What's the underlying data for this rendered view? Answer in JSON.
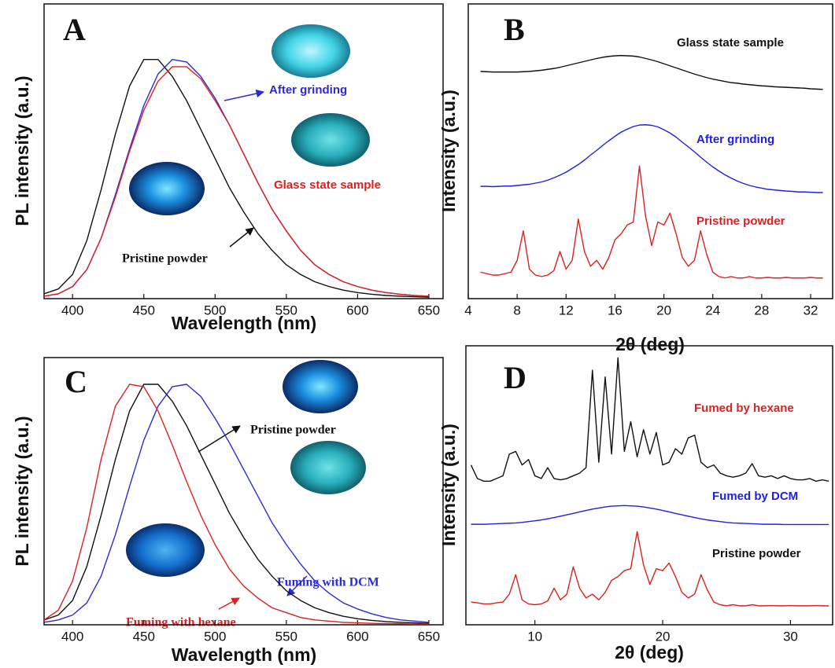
{
  "chart_data": [
    {
      "type": "line",
      "panel_label": "A",
      "x_label": "Wavelength (nm)",
      "y_label": "PL intensity (a.u.)",
      "x": [
        380,
        390,
        400,
        410,
        420,
        430,
        440,
        450,
        460,
        470,
        480,
        490,
        500,
        510,
        520,
        530,
        540,
        550,
        560,
        570,
        580,
        590,
        600,
        610,
        620,
        630,
        640,
        650
      ],
      "xlim": [
        380,
        660
      ],
      "xticks": [
        400,
        450,
        500,
        550,
        600,
        650
      ],
      "ylim": [
        0,
        1.22
      ],
      "series": [
        {
          "name": "Pristine powder",
          "color": "#111111",
          "values": [
            0.02,
            0.04,
            0.1,
            0.24,
            0.45,
            0.68,
            0.88,
            0.99,
            0.99,
            0.92,
            0.82,
            0.7,
            0.58,
            0.46,
            0.36,
            0.27,
            0.2,
            0.14,
            0.1,
            0.07,
            0.05,
            0.035,
            0.025,
            0.018,
            0.013,
            0.01,
            0.008,
            0.006
          ]
        },
        {
          "name": "After grinding",
          "color": "#2b2bd6",
          "values": [
            0.01,
            0.02,
            0.05,
            0.12,
            0.25,
            0.43,
            0.62,
            0.8,
            0.93,
            0.99,
            0.98,
            0.92,
            0.83,
            0.72,
            0.6,
            0.48,
            0.37,
            0.28,
            0.2,
            0.14,
            0.1,
            0.07,
            0.05,
            0.035,
            0.025,
            0.018,
            0.013,
            0.01
          ]
        },
        {
          "name": "Glass state sample",
          "color": "#e02020",
          "values": [
            0.01,
            0.02,
            0.05,
            0.12,
            0.25,
            0.42,
            0.61,
            0.78,
            0.9,
            0.96,
            0.96,
            0.91,
            0.82,
            0.72,
            0.6,
            0.48,
            0.37,
            0.28,
            0.2,
            0.14,
            0.1,
            0.07,
            0.05,
            0.035,
            0.025,
            0.018,
            0.013,
            0.01
          ]
        }
      ]
    },
    {
      "type": "line",
      "panel_label": "B",
      "x_label": "2θ (deg)",
      "y_label": "Intensity (a.u.)",
      "x": [
        5,
        5.5,
        6,
        6.5,
        7,
        7.5,
        8,
        8.5,
        9,
        9.5,
        10,
        10.5,
        11,
        11.5,
        12,
        12.5,
        13,
        13.5,
        14,
        14.5,
        15,
        15.5,
        16,
        16.5,
        17,
        17.5,
        18,
        18.5,
        19,
        19.5,
        20,
        20.5,
        21,
        21.5,
        22,
        22.5,
        23,
        23.5,
        24,
        24.5,
        25,
        25.5,
        26,
        26.5,
        27,
        27.5,
        28,
        28.5,
        29,
        29.5,
        30,
        30.5,
        31,
        31.5,
        32,
        32.5,
        33
      ],
      "xlim": [
        4,
        33.8
      ],
      "xticks": [
        4,
        8,
        12,
        16,
        20,
        24,
        28,
        32
      ],
      "ylim": [
        0,
        10
      ],
      "series": [
        {
          "name": "Glass state sample",
          "color": "#111111",
          "values": [
            7.71,
            7.7,
            7.69,
            7.69,
            7.69,
            7.69,
            7.69,
            7.7,
            7.71,
            7.73,
            7.75,
            7.78,
            7.81,
            7.85,
            7.9,
            7.95,
            8.0,
            8.05,
            8.1,
            8.15,
            8.19,
            8.22,
            8.24,
            8.25,
            8.24,
            8.23,
            8.2,
            8.15,
            8.1,
            8.04,
            7.97,
            7.9,
            7.83,
            7.76,
            7.69,
            7.62,
            7.56,
            7.5,
            7.45,
            7.41,
            7.37,
            7.33,
            7.31,
            7.28,
            7.26,
            7.24,
            7.22,
            7.21,
            7.19,
            7.18,
            7.17,
            7.16,
            7.15,
            7.14,
            7.12,
            7.11,
            7.1
          ]
        },
        {
          "name": "After grinding",
          "color": "#2020e0",
          "values": [
            3.81,
            3.81,
            3.8,
            3.81,
            3.82,
            3.82,
            3.84,
            3.86,
            3.88,
            3.92,
            3.96,
            4.02,
            4.1,
            4.19,
            4.29,
            4.42,
            4.55,
            4.7,
            4.87,
            5.03,
            5.2,
            5.36,
            5.51,
            5.65,
            5.75,
            5.84,
            5.89,
            5.9,
            5.88,
            5.83,
            5.73,
            5.62,
            5.48,
            5.31,
            5.15,
            4.98,
            4.8,
            4.63,
            4.47,
            4.33,
            4.2,
            4.09,
            3.99,
            3.91,
            3.84,
            3.79,
            3.75,
            3.71,
            3.69,
            3.67,
            3.65,
            3.64,
            3.62,
            3.62,
            3.61,
            3.6,
            3.6
          ]
        },
        {
          "name": "Pristine powder",
          "color": "#dd2020",
          "values": [
            0.9,
            0.85,
            0.8,
            0.8,
            0.85,
            0.9,
            1.3,
            2.3,
            1.0,
            0.8,
            0.75,
            0.8,
            0.95,
            1.6,
            1.0,
            1.3,
            2.7,
            1.6,
            1.1,
            1.3,
            1.0,
            1.4,
            2.0,
            2.2,
            2.5,
            2.6,
            4.5,
            2.8,
            1.8,
            2.6,
            2.5,
            2.9,
            2.2,
            1.4,
            1.1,
            1.3,
            2.3,
            1.5,
            0.9,
            0.75,
            0.7,
            0.75,
            0.7,
            0.7,
            0.75,
            0.7,
            0.7,
            0.72,
            0.7,
            0.7,
            0.72,
            0.7,
            0.7,
            0.7,
            0.72,
            0.7,
            0.7
          ]
        }
      ]
    },
    {
      "type": "line",
      "panel_label": "C",
      "x_label": "Wavelength (nm)",
      "y_label": "PL intensity (a.u.)",
      "x": [
        380,
        390,
        400,
        410,
        420,
        430,
        440,
        450,
        460,
        470,
        480,
        490,
        500,
        510,
        520,
        530,
        540,
        550,
        560,
        570,
        580,
        590,
        600,
        610,
        620,
        630,
        640,
        650
      ],
      "xlim": [
        380,
        660
      ],
      "xticks": [
        400,
        450,
        500,
        550,
        600,
        650
      ],
      "ylim": [
        0,
        1.1
      ],
      "series": [
        {
          "name": "Pristine powder",
          "color": "#111111",
          "values": [
            0.02,
            0.04,
            0.1,
            0.24,
            0.45,
            0.68,
            0.88,
            0.99,
            0.99,
            0.92,
            0.82,
            0.7,
            0.58,
            0.46,
            0.36,
            0.27,
            0.2,
            0.14,
            0.1,
            0.07,
            0.05,
            0.035,
            0.025,
            0.018,
            0.013,
            0.01,
            0.008,
            0.006
          ]
        },
        {
          "name": "Fuming with DCM",
          "color": "#2b2bd6",
          "values": [
            0.01,
            0.02,
            0.04,
            0.09,
            0.2,
            0.37,
            0.57,
            0.76,
            0.9,
            0.98,
            0.99,
            0.94,
            0.85,
            0.75,
            0.64,
            0.53,
            0.42,
            0.33,
            0.25,
            0.18,
            0.13,
            0.09,
            0.065,
            0.045,
            0.03,
            0.02,
            0.015,
            0.01
          ]
        },
        {
          "name": "Fuming with hexane",
          "color": "#e02020",
          "values": [
            0.02,
            0.06,
            0.18,
            0.4,
            0.68,
            0.9,
            0.99,
            0.98,
            0.88,
            0.74,
            0.59,
            0.45,
            0.33,
            0.23,
            0.16,
            0.11,
            0.07,
            0.05,
            0.03,
            0.02,
            0.015,
            0.01,
            0.008,
            0.006,
            0.005,
            0.004,
            0.003,
            0.003
          ]
        }
      ]
    },
    {
      "type": "line",
      "panel_label": "D",
      "x_label": "2θ (deg)",
      "y_label": "Intensity (a.u.)",
      "x": [
        5,
        5.5,
        6,
        6.5,
        7,
        7.5,
        8,
        8.5,
        9,
        9.5,
        10,
        10.5,
        11,
        11.5,
        12,
        12.5,
        13,
        13.5,
        14,
        14.5,
        15,
        15.5,
        16,
        16.5,
        17,
        17.5,
        18,
        18.5,
        19,
        19.5,
        20,
        20.5,
        21,
        21.5,
        22,
        22.5,
        23,
        23.5,
        24,
        24.5,
        25,
        25.5,
        26,
        26.5,
        27,
        27.5,
        28,
        28.5,
        29,
        29.5,
        30,
        30.5,
        31,
        31.5,
        32,
        32.5,
        33
      ],
      "xlim": [
        4.6,
        33.3
      ],
      "xticks": [
        10,
        20,
        30
      ],
      "ylim": [
        0,
        10.3
      ],
      "series": [
        {
          "name": "Fumed by hexane",
          "color": "#111111",
          "values": [
            5.9,
            5.4,
            5.3,
            5.3,
            5.4,
            5.5,
            6.3,
            6.4,
            5.9,
            6.1,
            5.5,
            5.4,
            5.8,
            5.4,
            5.35,
            5.4,
            5.5,
            5.6,
            5.8,
            9.4,
            6.0,
            9.15,
            6.3,
            9.86,
            6.4,
            7.5,
            6.2,
            7.2,
            6.3,
            7.1,
            5.9,
            6.0,
            6.5,
            6.3,
            6.9,
            7.0,
            6.0,
            5.8,
            5.9,
            5.6,
            5.5,
            5.45,
            5.5,
            5.6,
            5.95,
            5.5,
            5.45,
            5.5,
            5.4,
            5.5,
            5.4,
            5.35,
            5.35,
            5.4,
            5.3,
            5.35,
            5.3
          ]
        },
        {
          "name": "Fumed by DCM",
          "color": "#2020e0",
          "values": [
            3.71,
            3.71,
            3.71,
            3.72,
            3.73,
            3.74,
            3.75,
            3.76,
            3.78,
            3.81,
            3.84,
            3.87,
            3.91,
            3.96,
            4.01,
            4.06,
            4.11,
            4.17,
            4.22,
            4.27,
            4.31,
            4.35,
            4.38,
            4.39,
            4.4,
            4.39,
            4.38,
            4.35,
            4.31,
            4.27,
            4.22,
            4.17,
            4.11,
            4.06,
            4.01,
            3.96,
            3.91,
            3.87,
            3.84,
            3.81,
            3.78,
            3.76,
            3.75,
            3.74,
            3.73,
            3.72,
            3.71,
            3.71,
            3.71,
            3.7,
            3.7,
            3.7,
            3.7,
            3.7,
            3.7,
            3.7,
            3.7
          ]
        },
        {
          "name": "Pristine powder",
          "color": "#dd2020",
          "values": [
            0.84,
            0.81,
            0.77,
            0.77,
            0.81,
            0.84,
            1.13,
            1.85,
            0.92,
            0.77,
            0.74,
            0.77,
            0.88,
            1.35,
            0.92,
            1.13,
            2.14,
            1.35,
            0.99,
            1.13,
            0.92,
            1.2,
            1.64,
            1.78,
            2.0,
            2.07,
            3.44,
            2.21,
            1.49,
            2.07,
            2.0,
            2.28,
            1.78,
            1.2,
            0.99,
            1.13,
            1.85,
            1.28,
            0.84,
            0.74,
            0.7,
            0.74,
            0.7,
            0.7,
            0.74,
            0.7,
            0.7,
            0.71,
            0.7,
            0.7,
            0.71,
            0.7,
            0.7,
            0.7,
            0.71,
            0.7,
            0.7
          ]
        }
      ]
    }
  ]
}
